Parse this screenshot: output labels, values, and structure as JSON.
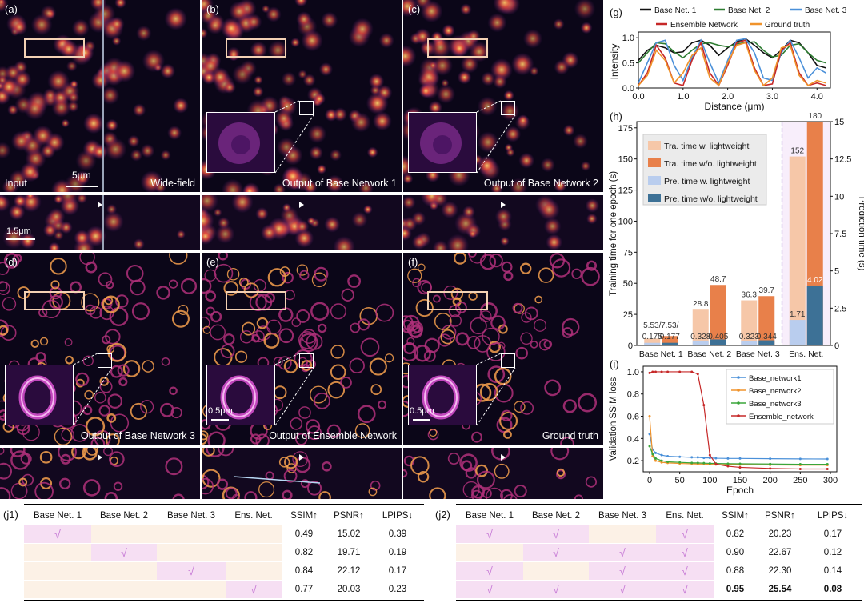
{
  "panels": {
    "a": {
      "letter": "(a)",
      "left_caption": "Input",
      "right_caption": "Wide-field",
      "scale": "5μm",
      "strip_scale": "1.5μm"
    },
    "b": {
      "letter": "(b)",
      "caption": "Output of Base Network 1"
    },
    "c": {
      "letter": "(c)",
      "caption": "Output of Base Network 2"
    },
    "d": {
      "letter": "(d)",
      "caption": "Output of Base Network 3"
    },
    "e": {
      "letter": "(e)",
      "caption": "Output of Ensemble Network",
      "inset_scale": "0.5μm"
    },
    "f": {
      "letter": "(f)",
      "caption": "Ground truth",
      "inset_scale": "0.5μm"
    },
    "g": {
      "letter": "(g)"
    },
    "h": {
      "letter": "(h)"
    },
    "i": {
      "letter": "(i)"
    }
  },
  "colors": {
    "base1": "#111111",
    "base2": "#2e7d32",
    "base3": "#4a90d9",
    "ensemble": "#c62828",
    "truth": "#f0932b",
    "tra_w": "#f6c7a8",
    "tra_wo": "#e8804a",
    "pre_w": "#b9cdee",
    "pre_wo": "#3d7196",
    "check": "#c77ad6",
    "pink": "#f6dff3",
    "cream": "#fcf1e6"
  },
  "chart_data": [
    {
      "id": "g",
      "type": "line",
      "xlabel": "Distance (μm)",
      "ylabel": "Intensity",
      "xlim": [
        0,
        4.3
      ],
      "ylim": [
        0,
        1.05
      ],
      "xticks": [
        "0.0",
        "1.0",
        "2.0",
        "3.0",
        "4.0"
      ],
      "yticks": [
        "0.0",
        "0.5",
        "1.0"
      ],
      "legend": [
        "Base Net. 1",
        "Base Net. 2",
        "Base Net. 3",
        "Ensemble Network",
        "Ground truth"
      ],
      "x": [
        0.0,
        0.2,
        0.4,
        0.6,
        0.8,
        1.0,
        1.2,
        1.4,
        1.6,
        1.8,
        2.0,
        2.2,
        2.4,
        2.6,
        2.8,
        3.0,
        3.2,
        3.4,
        3.6,
        3.8,
        4.0,
        4.2
      ],
      "series": [
        {
          "name": "Base Net. 1",
          "values": [
            0.55,
            0.75,
            0.85,
            0.8,
            0.7,
            0.72,
            0.9,
            0.95,
            0.85,
            0.65,
            0.8,
            0.92,
            0.98,
            0.85,
            0.7,
            0.6,
            0.75,
            0.95,
            0.9,
            0.7,
            0.45,
            0.4
          ]
        },
        {
          "name": "Base Net. 2",
          "values": [
            0.5,
            0.7,
            0.9,
            0.88,
            0.72,
            0.6,
            0.75,
            0.88,
            0.9,
            0.85,
            0.82,
            0.88,
            0.9,
            0.92,
            0.75,
            0.62,
            0.65,
            0.85,
            0.88,
            0.7,
            0.55,
            0.5
          ]
        },
        {
          "name": "Base Net. 3",
          "values": [
            0.1,
            0.5,
            0.9,
            0.95,
            0.45,
            0.15,
            0.6,
            0.95,
            0.5,
            0.1,
            0.55,
            0.95,
            0.98,
            0.7,
            0.2,
            0.15,
            0.7,
            0.95,
            0.6,
            0.2,
            0.4,
            0.3
          ]
        },
        {
          "name": "Ensemble Network",
          "values": [
            0.05,
            0.3,
            0.85,
            0.6,
            0.1,
            0.05,
            0.55,
            0.9,
            0.3,
            0.05,
            0.45,
            0.9,
            0.95,
            0.4,
            0.05,
            0.08,
            0.75,
            0.9,
            0.3,
            0.05,
            0.1,
            0.05
          ]
        },
        {
          "name": "Ground truth",
          "values": [
            0.05,
            0.25,
            0.75,
            0.55,
            0.1,
            0.3,
            0.65,
            0.8,
            0.2,
            0.05,
            0.5,
            0.85,
            0.9,
            0.35,
            0.05,
            0.2,
            0.8,
            0.85,
            0.25,
            0.05,
            0.15,
            0.1
          ]
        }
      ]
    },
    {
      "id": "h",
      "type": "bar",
      "categories": [
        "Base Net. 1",
        "Base Net. 2",
        "Base Net. 3",
        "Ens. Net."
      ],
      "ylabel": "Training time for one epoch (s)",
      "y2label": "Prediction time (s)",
      "ylim": [
        0,
        180
      ],
      "y2lim": [
        0,
        15
      ],
      "yticks": [
        "0",
        "25",
        "50",
        "75",
        "100",
        "125",
        "150",
        "175"
      ],
      "y2ticks": [
        "0",
        "2.5",
        "5",
        "7.5",
        "10",
        "12.5",
        "15"
      ],
      "legend": [
        "Tra. time w.   lightweight",
        "Tra. time w/o. lightweight",
        "Pre. time w.   lightweight",
        "Pre. time w/o. lightweight"
      ],
      "train_w": [
        5.53,
        28.8,
        36.3,
        152
      ],
      "train_wo": [
        7.53,
        48.7,
        39.7,
        180
      ],
      "pred_w": [
        0.175,
        0.328,
        0.323,
        1.71
      ],
      "pred_wo": [
        0.177,
        0.405,
        0.344,
        4.02
      ],
      "labels_train_w": [
        "5.53/",
        "28.8",
        "36.3",
        "152"
      ],
      "labels_train_wo": [
        "7.53/",
        "48.7",
        "39.7",
        "180"
      ],
      "labels_pred_w": [
        "0.175",
        "0.328",
        "0.323",
        "1.71"
      ],
      "labels_pred_wo": [
        "0.177",
        "0.405",
        "0.344",
        "4.02"
      ]
    },
    {
      "id": "i",
      "type": "line",
      "xlabel": "Epoch",
      "ylabel": "Validation SSIM loss",
      "xlim": [
        0,
        300
      ],
      "ylim": [
        0.1,
        1.05
      ],
      "xticks": [
        "0",
        "50",
        "100",
        "150",
        "200",
        "250",
        "300"
      ],
      "yticks": [
        "0.2",
        "0.4",
        "0.6",
        "0.8",
        "1.0"
      ],
      "legend": [
        "Base_network1",
        "Base_network2",
        "Base_network3",
        "Ensemble_network"
      ],
      "x": [
        0,
        5,
        10,
        20,
        30,
        50,
        70,
        80,
        90,
        100,
        110,
        130,
        150,
        200,
        250,
        295
      ],
      "series": [
        {
          "name": "Base_network1",
          "values": [
            0.44,
            0.3,
            0.27,
            0.25,
            0.24,
            0.235,
            0.23,
            0.23,
            0.225,
            0.225,
            0.222,
            0.22,
            0.22,
            0.218,
            0.216,
            0.215
          ]
        },
        {
          "name": "Base_network2",
          "values": [
            0.6,
            0.24,
            0.2,
            0.185,
            0.18,
            0.175,
            0.172,
            0.17,
            0.17,
            0.168,
            0.166,
            0.165,
            0.164,
            0.162,
            0.16,
            0.16
          ]
        },
        {
          "name": "Base_network3",
          "values": [
            0.33,
            0.26,
            0.22,
            0.2,
            0.19,
            0.185,
            0.18,
            0.18,
            0.178,
            0.176,
            0.175,
            0.173,
            0.172,
            0.17,
            0.168,
            0.168
          ]
        },
        {
          "name": "Ensemble_network",
          "values": [
            0.99,
            1.0,
            1.0,
            1.0,
            1.0,
            1.0,
            1.0,
            0.98,
            0.7,
            0.25,
            0.17,
            0.15,
            0.14,
            0.13,
            0.125,
            0.125
          ]
        }
      ]
    },
    {
      "id": "j1",
      "type": "table",
      "letter": "(j1)",
      "columns": [
        "Base Net. 1",
        "Base Net. 2",
        "Base Net. 3",
        "Ens. Net.",
        "SSIM↑",
        "PSNR↑",
        "LPIPS↓"
      ],
      "rows": [
        {
          "checks": [
            true,
            false,
            false,
            false
          ],
          "ssim": "0.49",
          "psnr": "15.02",
          "lpips": "0.39"
        },
        {
          "checks": [
            false,
            true,
            false,
            false
          ],
          "ssim": "0.82",
          "psnr": "19.71",
          "lpips": "0.19"
        },
        {
          "checks": [
            false,
            false,
            true,
            false
          ],
          "ssim": "0.84",
          "psnr": "22.12",
          "lpips": "0.17"
        },
        {
          "checks": [
            false,
            false,
            false,
            true
          ],
          "ssim": "0.77",
          "psnr": "20.03",
          "lpips": "0.23"
        }
      ]
    },
    {
      "id": "j2",
      "type": "table",
      "letter": "(j2)",
      "columns": [
        "Base Net. 1",
        "Base Net. 2",
        "Base Net. 3",
        "Ens. Net.",
        "SSIM↑",
        "PSNR↑",
        "LPIPS↓"
      ],
      "rows": [
        {
          "checks": [
            true,
            true,
            false,
            true
          ],
          "ssim": "0.82",
          "psnr": "20.23",
          "lpips": "0.17"
        },
        {
          "checks": [
            false,
            true,
            true,
            true
          ],
          "ssim": "0.90",
          "psnr": "22.67",
          "lpips": "0.12"
        },
        {
          "checks": [
            true,
            false,
            true,
            true
          ],
          "ssim": "0.88",
          "psnr": "22.30",
          "lpips": "0.14"
        },
        {
          "checks": [
            true,
            true,
            true,
            true
          ],
          "ssim": "0.95",
          "psnr": "25.54",
          "lpips": "0.08",
          "bold": true
        }
      ]
    }
  ],
  "check_glyph": "√"
}
